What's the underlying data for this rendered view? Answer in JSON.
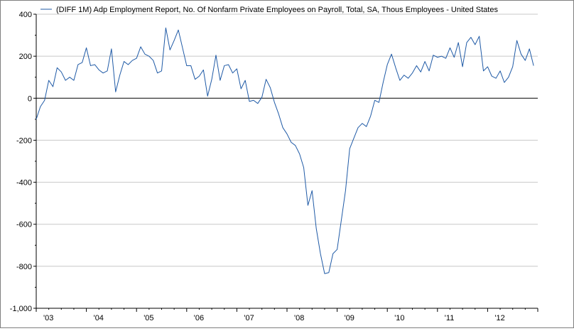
{
  "chart_data": {
    "type": "line",
    "title": "",
    "xlabel": "",
    "ylabel": "",
    "legend": {
      "position": "top",
      "entries": [
        "(DIFF 1M) Adp Employment Report, No. Of Nonfarm Private Employees on Payroll, Total, SA, Thous Employees - United States"
      ]
    },
    "x_range": [
      "2003-01",
      "2012-12"
    ],
    "x_tick_labels": [
      "'03",
      "'04",
      "'05",
      "'06",
      "'07",
      "'08",
      "'09",
      "'10",
      "'11",
      "'12"
    ],
    "ylim": [
      -1000,
      400
    ],
    "y_ticks": [
      400,
      200,
      0,
      -200,
      -400,
      -600,
      -800,
      -1000
    ],
    "y_tick_labels": [
      "400",
      "200",
      "0",
      "-200",
      "-400",
      "-600",
      "-800",
      "-1,000"
    ],
    "grid": "horizontal",
    "zero_line": true,
    "series_color": "#1f5aa6",
    "series": [
      {
        "name": "(DIFF 1M) Adp Employment Report, No. Of Nonfarm Private Employees on Payroll, Total, SA, Thous Employees - United States",
        "x": [
          "2003-01",
          "2003-02",
          "2003-03",
          "2003-04",
          "2003-05",
          "2003-06",
          "2003-07",
          "2003-08",
          "2003-09",
          "2003-10",
          "2003-11",
          "2003-12",
          "2004-01",
          "2004-02",
          "2004-03",
          "2004-04",
          "2004-05",
          "2004-06",
          "2004-07",
          "2004-08",
          "2004-09",
          "2004-10",
          "2004-11",
          "2004-12",
          "2005-01",
          "2005-02",
          "2005-03",
          "2005-04",
          "2005-05",
          "2005-06",
          "2005-07",
          "2005-08",
          "2005-09",
          "2005-10",
          "2005-11",
          "2005-12",
          "2006-01",
          "2006-02",
          "2006-03",
          "2006-04",
          "2006-05",
          "2006-06",
          "2006-07",
          "2006-08",
          "2006-09",
          "2006-10",
          "2006-11",
          "2006-12",
          "2007-01",
          "2007-02",
          "2007-03",
          "2007-04",
          "2007-05",
          "2007-06",
          "2007-07",
          "2007-08",
          "2007-09",
          "2007-10",
          "2007-11",
          "2007-12",
          "2008-01",
          "2008-02",
          "2008-03",
          "2008-04",
          "2008-05",
          "2008-06",
          "2008-07",
          "2008-08",
          "2008-09",
          "2008-10",
          "2008-11",
          "2008-12",
          "2009-01",
          "2009-02",
          "2009-03",
          "2009-04",
          "2009-05",
          "2009-06",
          "2009-07",
          "2009-08",
          "2009-09",
          "2009-10",
          "2009-11",
          "2009-12",
          "2010-01",
          "2010-02",
          "2010-03",
          "2010-04",
          "2010-05",
          "2010-06",
          "2010-07",
          "2010-08",
          "2010-09",
          "2010-10",
          "2010-11",
          "2010-12",
          "2011-01",
          "2011-02",
          "2011-03",
          "2011-04",
          "2011-05",
          "2011-06",
          "2011-07",
          "2011-08",
          "2011-09",
          "2011-10",
          "2011-11",
          "2011-12",
          "2012-01",
          "2012-02",
          "2012-03",
          "2012-04",
          "2012-05",
          "2012-06",
          "2012-07",
          "2012-08",
          "2012-09",
          "2012-10",
          "2012-11",
          "2012-12"
        ],
        "values": [
          -100,
          -40,
          -10,
          85,
          55,
          145,
          125,
          85,
          100,
          85,
          160,
          170,
          240,
          155,
          160,
          135,
          120,
          130,
          235,
          30,
          110,
          175,
          160,
          180,
          190,
          245,
          210,
          200,
          180,
          120,
          130,
          335,
          230,
          275,
          325,
          240,
          155,
          155,
          90,
          105,
          135,
          10,
          90,
          205,
          85,
          155,
          160,
          120,
          140,
          45,
          85,
          -15,
          -10,
          -25,
          5,
          90,
          50,
          -20,
          -75,
          -140,
          -170,
          -210,
          -225,
          -265,
          -330,
          -510,
          -440,
          -620,
          -740,
          -835,
          -830,
          -740,
          -720,
          -580,
          -440,
          -240,
          -190,
          -140,
          -120,
          -135,
          -85,
          -10,
          -20,
          75,
          160,
          210,
          145,
          85,
          110,
          95,
          120,
          155,
          125,
          175,
          130,
          205,
          195,
          200,
          190,
          240,
          195,
          265,
          150,
          265,
          290,
          255,
          295,
          130,
          150,
          105,
          95,
          130,
          75,
          100,
          150,
          275,
          210,
          180,
          235,
          155
        ]
      }
    ]
  }
}
